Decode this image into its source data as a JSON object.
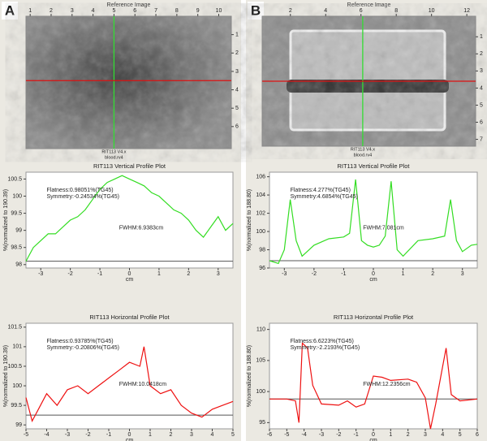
{
  "panels": [
    "A",
    "B"
  ],
  "chart_data": [
    {
      "type": "image",
      "title": "Reference Image",
      "footnote": [
        "RIT113 V4.x",
        "blood.rv4"
      ],
      "xlim": [
        0.8,
        10.6
      ],
      "xticks": [
        1,
        2,
        3,
        4,
        5,
        6,
        7,
        8,
        9,
        10
      ],
      "ylim": [
        0,
        7.2
      ],
      "yticks": [
        1,
        2,
        3,
        4,
        5,
        6
      ],
      "crosshair": {
        "x": 5,
        "y": 3.5
      },
      "colors": {
        "vertical": "#33dd33",
        "horizontal": "#dd1111"
      }
    },
    {
      "type": "line",
      "title": "RIT113 Vertical Profile Plot",
      "ylabel": "%(normalized to 190.39)",
      "xlabel": "cm",
      "flatness": "Flatness:0.98051%(TG45)",
      "symmetry": "Symmetry:-0.24534%(TG45)",
      "fwhm": "FWHM:6.9383cm",
      "xlim": [
        -3.5,
        3.5
      ],
      "xticks": [
        -3,
        -2,
        -1,
        0,
        1,
        2,
        3
      ],
      "ylim": [
        97.9,
        100.7
      ],
      "yticks": [
        98,
        98.5,
        99,
        99.5,
        100,
        100.5
      ],
      "baseline": 98.1,
      "series": [
        {
          "color": "#33dd22",
          "x": [
            -3.5,
            -3.25,
            -3,
            -2.75,
            -2.5,
            -2.25,
            -2,
            -1.75,
            -1.5,
            -1.25,
            -1,
            -0.75,
            -0.5,
            -0.25,
            0,
            0.25,
            0.5,
            0.75,
            1,
            1.25,
            1.5,
            1.75,
            2,
            2.25,
            2.5,
            2.75,
            3,
            3.25,
            3.5
          ],
          "values": [
            98.1,
            98.5,
            98.7,
            98.9,
            98.9,
            99.1,
            99.3,
            99.4,
            99.6,
            99.9,
            100.2,
            100.4,
            100.5,
            100.6,
            100.5,
            100.4,
            100.3,
            100.1,
            100,
            99.8,
            99.6,
            99.5,
            99.3,
            99,
            98.8,
            99.1,
            99.4,
            99,
            99.2
          ]
        }
      ]
    },
    {
      "type": "line",
      "title": "RIT113 Horizontal Profile Plot",
      "ylabel": "%(normalized to 190.39)",
      "xlabel": "cm",
      "flatness": "Flatness:0.93785%(TG45)",
      "symmetry": "Symmetry:-0.20806%(TG45)",
      "fwhm": "FWHM:10.0418cm",
      "xlim": [
        -5,
        5
      ],
      "xticks": [
        -5,
        -4,
        -3,
        -2,
        -1,
        0,
        1,
        2,
        3,
        4,
        5
      ],
      "ylim": [
        98.9,
        101.6
      ],
      "yticks": [
        99,
        99.5,
        100,
        100.5,
        101,
        101.5
      ],
      "baseline": 99.25,
      "series": [
        {
          "color": "#ee1111",
          "x": [
            -5,
            -4.7,
            -4.5,
            -4,
            -3.5,
            -3,
            -2.5,
            -2,
            -1.5,
            -1,
            -0.5,
            0,
            0.5,
            0.7,
            1,
            1.5,
            2,
            2.5,
            3,
            3.5,
            4,
            4.5,
            5
          ],
          "values": [
            99.7,
            99.1,
            99.3,
            99.8,
            99.5,
            99.9,
            100,
            99.8,
            100,
            100.2,
            100.4,
            100.6,
            100.5,
            101,
            100,
            99.8,
            99.9,
            99.5,
            99.3,
            99.2,
            99.4,
            99.5,
            99.6
          ]
        }
      ]
    },
    {
      "type": "image",
      "title": "Reference Image",
      "footnote": [
        "RIT113 V4.x",
        "blood.rv4"
      ],
      "xlim": [
        0.4,
        12.5
      ],
      "xticks": [
        2,
        4,
        6,
        8,
        10,
        12
      ],
      "ylim": [
        -0.2,
        7.4
      ],
      "yticks": [
        1,
        2,
        3,
        4,
        5,
        6,
        7
      ],
      "crosshair": {
        "x": 6.1,
        "y": 3.6
      },
      "colors": {
        "vertical": "#33dd33",
        "horizontal": "#dd1111"
      }
    },
    {
      "type": "line",
      "title": "RIT113 Vertical Profile Plot",
      "ylabel": "%(normalized to 188.80)",
      "xlabel": "cm",
      "flatness": "Flatness:4.277%(TG45)",
      "symmetry": "Symmetry:4.6854%(TG45)",
      "fwhm": "FWHM:7.081cm",
      "xlim": [
        -3.5,
        3.5
      ],
      "xticks": [
        -3,
        -2,
        -1,
        0,
        1,
        2,
        3
      ],
      "ylim": [
        96,
        106.5
      ],
      "yticks": [
        96,
        98,
        100,
        102,
        104,
        106
      ],
      "baseline": 96.8,
      "series": [
        {
          "color": "#33dd22",
          "x": [
            -3.5,
            -3.2,
            -3,
            -2.8,
            -2.6,
            -2.4,
            -2,
            -1.5,
            -1,
            -0.8,
            -0.6,
            -0.4,
            -0.2,
            0,
            0.2,
            0.4,
            0.6,
            0.8,
            1,
            1.5,
            2,
            2.4,
            2.6,
            2.8,
            3,
            3.3,
            3.5
          ],
          "values": [
            96.8,
            96.5,
            98,
            103.5,
            99,
            97.3,
            98.5,
            99.2,
            99.4,
            99.8,
            105.7,
            99,
            98.5,
            98.3,
            98.5,
            99.5,
            105.5,
            98,
            97.3,
            99,
            99.2,
            99.5,
            103.5,
            99,
            97.8,
            98.5,
            98.6
          ]
        }
      ]
    },
    {
      "type": "line",
      "title": "RIT113 Horizontal Profile Plot",
      "ylabel": "%(normalized to 188.80)",
      "xlabel": "cm",
      "flatness": "Flatness:6.6223%(TG45)",
      "symmetry": "Symmetry:-2.2193%(TG45)",
      "fwhm": "FWHM:12.2356cm",
      "xlim": [
        -6,
        6
      ],
      "xticks": [
        -6,
        -5,
        -4,
        -3,
        -2,
        -1,
        0,
        1,
        2,
        3,
        4,
        5,
        6
      ],
      "ylim": [
        94,
        111
      ],
      "yticks": [
        95,
        100,
        105,
        110
      ],
      "baseline": 98.8,
      "series": [
        {
          "color": "#ee1111",
          "x": [
            -6,
            -5,
            -4.5,
            -4.3,
            -4.1,
            -3.8,
            -3.5,
            -3,
            -2,
            -1.5,
            -1,
            -0.5,
            0,
            0.5,
            1,
            2,
            2.5,
            3,
            3.3,
            3.6,
            4,
            4.2,
            4.5,
            5,
            6
          ],
          "values": [
            98.8,
            98.8,
            98.5,
            95,
            107.8,
            107,
            101,
            98,
            97.8,
            98.5,
            97.5,
            98,
            102.5,
            102.3,
            101.8,
            102,
            101.5,
            99,
            94,
            98,
            104,
            107,
            99.5,
            98.5,
            98.8
          ]
        }
      ]
    }
  ]
}
